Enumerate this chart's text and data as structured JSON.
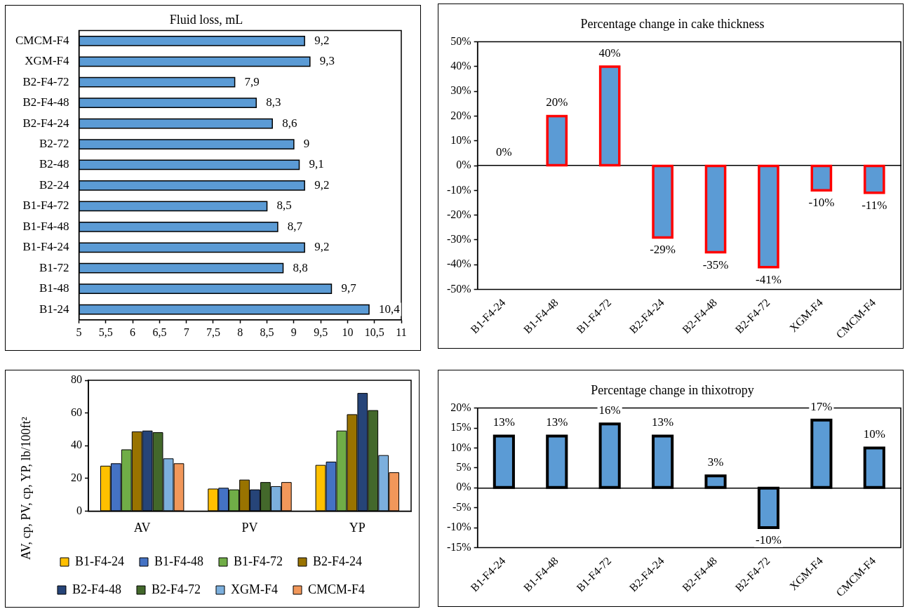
{
  "chart_data": [
    {
      "type": "bar",
      "orientation": "horizontal",
      "title": "Fluid loss, mL",
      "categories": [
        "CMCM-F4",
        "XGM-F4",
        "B2-F4-72",
        "B2-F4-48",
        "B2-F4-24",
        "B2-72",
        "B2-48",
        "B2-24",
        "B1-F4-72",
        "B1-F4-48",
        "B1-F4-24",
        "B1-72",
        "B1-48",
        "B1-24"
      ],
      "values": [
        9.2,
        9.3,
        7.9,
        8.3,
        8.6,
        9,
        9.1,
        9.2,
        8.5,
        8.7,
        9.2,
        8.8,
        9.7,
        10.4
      ],
      "color": "#5b9bd5",
      "value_labels": [
        "9,2",
        "9,3",
        "7,9",
        "8,3",
        "8,6",
        "9",
        "9,1",
        "9,2",
        "8,5",
        "8,7",
        "9,2",
        "8,8",
        "9,7",
        "10,4"
      ],
      "xlim": [
        5,
        11
      ],
      "xticks": [
        5,
        {
          "value": 5.5,
          "label": "5,5"
        },
        6,
        {
          "value": 6.5,
          "label": "6,5"
        },
        7,
        {
          "value": 7.5,
          "label": "7,5"
        },
        8,
        {
          "value": 8.5,
          "label": "8,5"
        },
        9,
        {
          "value": 9.5,
          "label": "9,5"
        },
        10,
        {
          "value": 10.5,
          "label": "10,5"
        },
        11
      ]
    },
    {
      "type": "bar",
      "title": "Percentage change in cake thickness",
      "categories": [
        "B1-F4-24",
        "B1-F4-48",
        "B1-F4-72",
        "B2-F4-24",
        "B2-F4-48",
        "B2-F4-72",
        "XGM-F4",
        "CMCM-F4"
      ],
      "values": [
        0,
        20,
        40,
        -29,
        -35,
        -41,
        -10,
        -11
      ],
      "color": "#5b9bd5",
      "value_labels": [
        "0%",
        "20%",
        "40%",
        "-29%",
        "-35%",
        "-41%",
        "-10%",
        "-11%"
      ],
      "ylim": [
        -50,
        50
      ],
      "yticks": [
        {
          "value": -50,
          "label": "-50%"
        },
        {
          "value": -40,
          "label": "-40%"
        },
        {
          "value": -30,
          "label": "-30%"
        },
        {
          "value": -20,
          "label": "-20%"
        },
        {
          "value": -10,
          "label": "-10%"
        },
        {
          "value": 0,
          "label": "0%"
        },
        {
          "value": 10,
          "label": "10%"
        },
        {
          "value": 20,
          "label": "20%"
        },
        {
          "value": 30,
          "label": "30%"
        },
        {
          "value": 40,
          "label": "40%"
        },
        {
          "value": 50,
          "label": "50%"
        }
      ]
    },
    {
      "type": "bar",
      "categories": [
        "AV",
        "PV",
        "YP"
      ],
      "ylabel": "AV, cp, PV, cp, YP, lb/100ft²",
      "series": [
        {
          "name": "B1-F4-24",
          "color": "#ffc000",
          "values": [
            27.5,
            13.5,
            28
          ]
        },
        {
          "name": "B1-F4-48",
          "color": "#4472c4",
          "values": [
            29,
            14,
            30
          ]
        },
        {
          "name": "B1-F4-72",
          "color": "#70ad47",
          "values": [
            37.5,
            13,
            49
          ]
        },
        {
          "name": "B2-F4-24",
          "color": "#997300",
          "values": [
            48.5,
            19,
            59
          ]
        },
        {
          "name": "B2-F4-48",
          "color": "#264478",
          "values": [
            49,
            13,
            72
          ]
        },
        {
          "name": "B2-F4-72",
          "color": "#43682b",
          "values": [
            48,
            17.5,
            61.5
          ]
        },
        {
          "name": "XGM-F4",
          "color": "#7cafdd",
          "values": [
            32,
            15,
            34
          ]
        },
        {
          "name": "CMCM-F4",
          "color": "#f1975a",
          "values": [
            29,
            17.5,
            23.5
          ]
        }
      ],
      "ylim": [
        0,
        80
      ],
      "yticks": [
        0,
        20,
        40,
        60,
        80
      ],
      "legend": "bottom"
    },
    {
      "type": "bar",
      "title": "Percentage change in thixotropy",
      "categories": [
        "B1-F4-24",
        "B1-F4-48",
        "B1-F4-72",
        "B2-F4-24",
        "B2-F4-48",
        "B2-F4-72",
        "XGM-F4",
        "CMCM-F4"
      ],
      "values": [
        13,
        13,
        16,
        13,
        3,
        -10,
        17,
        10
      ],
      "color": "#5b9bd5",
      "value_labels": [
        "13%",
        "13%",
        "16%",
        "13%",
        "3%",
        "-10%",
        "17%",
        "10%"
      ],
      "ylim": [
        -15,
        20
      ],
      "yticks": [
        {
          "value": -15,
          "label": "-15%"
        },
        {
          "value": -10,
          "label": "-10%"
        },
        {
          "value": -5,
          "label": "-5%"
        },
        {
          "value": 0,
          "label": "0%"
        },
        {
          "value": 5,
          "label": "5%"
        },
        {
          "value": 10,
          "label": "10%"
        },
        {
          "value": 15,
          "label": "15%"
        },
        {
          "value": 20,
          "label": "20%"
        }
      ]
    }
  ]
}
